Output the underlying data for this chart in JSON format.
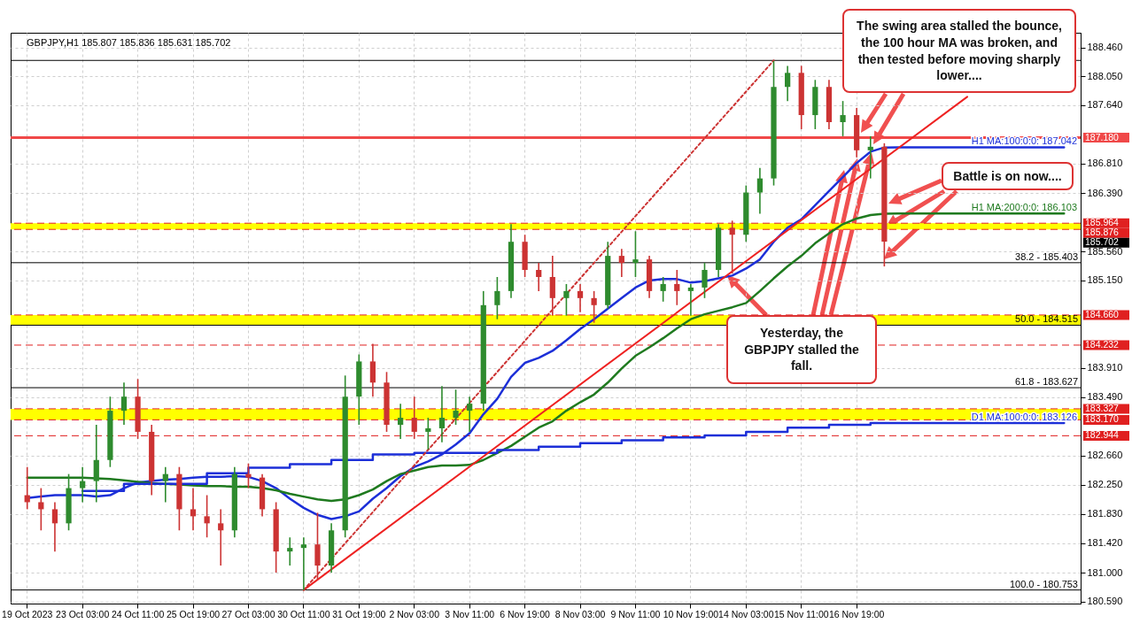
{
  "chart_data": {
    "type": "candlestick",
    "title": "GBPJPY,H1  185.807 185.836 185.631 185.702",
    "categories": [
      "19 Oct 2023",
      null,
      null,
      null,
      "23 Oct 03:00",
      null,
      null,
      null,
      "24 Oct 11:00",
      null,
      null,
      null,
      "25 Oct 19:00",
      null,
      null,
      null,
      "27 Oct 03:00",
      null,
      null,
      null,
      "30 Oct 11:00",
      null,
      null,
      null,
      "31 Oct 19:00",
      null,
      null,
      null,
      "2 Nov 03:00",
      null,
      null,
      null,
      "3 Nov 11:00",
      null,
      null,
      null,
      "6 Nov 19:00",
      null,
      null,
      null,
      "8 Nov 03:00",
      null,
      null,
      null,
      "9 Nov 11:00",
      null,
      null,
      null,
      "10 Nov 19:00",
      null,
      null,
      null,
      "14 Nov 03:00",
      null,
      null,
      null,
      "15 Nov 11:00",
      null,
      null,
      null,
      "16 Nov 19:00",
      null,
      null,
      null,
      null,
      null,
      null,
      null,
      null,
      null,
      null,
      null,
      null,
      null,
      null,
      null
    ],
    "ohlc": [
      [
        182.1,
        182.5,
        181.9,
        182.0
      ],
      [
        182.0,
        182.2,
        181.6,
        181.9
      ],
      [
        181.9,
        182.0,
        181.3,
        181.7
      ],
      [
        181.7,
        182.4,
        181.6,
        182.2
      ],
      [
        182.2,
        182.5,
        182.0,
        182.3
      ],
      [
        182.3,
        183.1,
        182.0,
        182.6
      ],
      [
        182.6,
        183.5,
        182.5,
        183.3
      ],
      [
        183.3,
        183.7,
        183.1,
        183.5
      ],
      [
        183.5,
        183.75,
        182.9,
        183.0
      ],
      [
        183.0,
        183.1,
        182.1,
        182.3
      ],
      [
        182.3,
        182.5,
        182.0,
        182.4
      ],
      [
        182.4,
        182.5,
        181.6,
        181.9
      ],
      [
        181.9,
        182.2,
        181.6,
        181.8
      ],
      [
        181.8,
        182.1,
        181.5,
        181.7
      ],
      [
        181.7,
        181.9,
        181.1,
        181.6
      ],
      [
        181.6,
        182.5,
        181.5,
        182.4
      ],
      [
        182.4,
        182.55,
        182.2,
        182.35
      ],
      [
        182.35,
        182.4,
        181.8,
        181.9
      ],
      [
        181.9,
        182.0,
        181.0,
        181.3
      ],
      [
        181.3,
        181.5,
        181.1,
        181.35
      ],
      [
        181.35,
        181.5,
        180.753,
        181.4
      ],
      [
        181.4,
        181.85,
        180.9,
        181.1
      ],
      [
        181.1,
        181.7,
        181.0,
        181.6
      ],
      [
        181.6,
        183.8,
        181.5,
        183.5
      ],
      [
        183.5,
        184.1,
        183.1,
        184.0
      ],
      [
        184.0,
        184.25,
        183.5,
        183.7
      ],
      [
        183.7,
        183.85,
        183.0,
        183.1
      ],
      [
        183.1,
        183.4,
        182.9,
        183.2
      ],
      [
        183.2,
        183.5,
        182.9,
        183.0
      ],
      [
        183.0,
        183.2,
        182.75,
        183.05
      ],
      [
        183.05,
        183.65,
        182.85,
        183.2
      ],
      [
        183.2,
        183.6,
        183.1,
        183.3
      ],
      [
        183.3,
        183.5,
        183.0,
        183.4
      ],
      [
        183.4,
        185.0,
        183.3,
        184.8
      ],
      [
        184.8,
        185.2,
        184.6,
        185.0
      ],
      [
        185.0,
        185.95,
        184.9,
        185.7
      ],
      [
        185.7,
        185.8,
        185.2,
        185.3
      ],
      [
        185.3,
        185.4,
        185.0,
        185.2
      ],
      [
        185.2,
        185.5,
        184.65,
        184.9
      ],
      [
        184.9,
        185.1,
        184.65,
        185.0
      ],
      [
        185.0,
        185.1,
        184.7,
        184.9
      ],
      [
        184.9,
        185.0,
        184.55,
        184.8
      ],
      [
        184.8,
        185.7,
        184.75,
        185.5
      ],
      [
        185.5,
        185.6,
        185.2,
        185.4
      ],
      [
        185.4,
        185.85,
        185.2,
        185.45
      ],
      [
        185.45,
        185.5,
        184.9,
        185.0
      ],
      [
        185.0,
        185.2,
        184.85,
        185.1
      ],
      [
        185.1,
        185.3,
        184.8,
        185.0
      ],
      [
        185.0,
        185.1,
        184.65,
        185.05
      ],
      [
        185.05,
        185.4,
        184.9,
        185.3
      ],
      [
        185.3,
        185.95,
        185.2,
        185.9
      ],
      [
        185.9,
        186.0,
        185.25,
        185.8
      ],
      [
        185.8,
        186.5,
        185.7,
        186.4
      ],
      [
        186.4,
        186.75,
        186.1,
        186.6
      ],
      [
        186.6,
        188.27,
        186.5,
        187.9
      ],
      [
        187.9,
        188.2,
        187.7,
        188.1
      ],
      [
        188.1,
        188.2,
        187.3,
        187.5
      ],
      [
        187.5,
        188.0,
        187.3,
        187.9
      ],
      [
        187.9,
        188.0,
        187.3,
        187.4
      ],
      [
        187.4,
        187.7,
        187.2,
        187.5
      ],
      [
        187.5,
        187.6,
        186.9,
        187.0
      ],
      [
        187.0,
        187.2,
        186.6,
        187.05
      ],
      [
        187.05,
        187.1,
        185.35,
        185.702
      ],
      null,
      null,
      null,
      null,
      null,
      null,
      null,
      null,
      null,
      null,
      null,
      null,
      null
    ],
    "colors": [
      "#cc3333",
      "#cc3333",
      "#cc3333",
      "#2e8b2e",
      "#2e8b2e",
      "#2e8b2e",
      "#2e8b2e",
      "#2e8b2e",
      "#cc3333",
      "#cc3333",
      "#2e8b2e",
      "#cc3333",
      "#cc3333",
      "#cc3333",
      "#cc3333",
      "#2e8b2e",
      "#cc3333",
      "#cc3333",
      "#cc3333",
      "#2e8b2e",
      "#2e8b2e",
      "#cc3333",
      "#2e8b2e",
      "#2e8b2e",
      "#2e8b2e",
      "#cc3333",
      "#cc3333",
      "#2e8b2e",
      "#cc3333",
      "#2e8b2e",
      "#2e8b2e",
      "#2e8b2e",
      "#2e8b2e",
      "#2e8b2e",
      "#2e8b2e",
      "#2e8b2e",
      "#cc3333",
      "#cc3333",
      "#cc3333",
      "#2e8b2e",
      "#cc3333",
      "#cc3333",
      "#2e8b2e",
      "#cc3333",
      "#2e8b2e",
      "#cc3333",
      "#2e8b2e",
      "#cc3333",
      "#2e8b2e",
      "#2e8b2e",
      "#2e8b2e",
      "#cc3333",
      "#2e8b2e",
      "#2e8b2e",
      "#2e8b2e",
      "#2e8b2e",
      "#cc3333",
      "#2e8b2e",
      "#cc3333",
      "#2e8b2e",
      "#cc3333",
      "#2e8b2e",
      "#cc3333",
      null,
      null,
      null,
      null,
      null,
      null,
      null,
      null,
      null,
      null,
      null,
      null,
      null
    ],
    "series": [
      {
        "type": "line",
        "name": "H1 MA:100:0:0: 187.042",
        "color": "#1c2fd8",
        "values": [
          182.06,
          182.08,
          182.1,
          182.1,
          182.1,
          182.08,
          182.1,
          182.2,
          182.28,
          182.3,
          182.32,
          182.33,
          182.35,
          182.36,
          182.36,
          182.37,
          182.36,
          182.3,
          182.2,
          182.05,
          181.92,
          181.82,
          181.76,
          181.8,
          181.87,
          182.05,
          182.2,
          182.37,
          182.5,
          182.58,
          182.68,
          182.82,
          182.98,
          183.25,
          183.47,
          183.78,
          183.98,
          184.05,
          184.15,
          184.3,
          184.46,
          184.6,
          184.75,
          184.9,
          185.05,
          185.15,
          185.17,
          185.17,
          185.12,
          185.14,
          185.18,
          185.22,
          185.32,
          185.45,
          185.7,
          185.9,
          186.02,
          186.22,
          186.42,
          186.62,
          186.82,
          186.98,
          187.04,
          187.042,
          187.042,
          187.042,
          187.042,
          187.042,
          187.042,
          187.042,
          187.042,
          187.042,
          187.042,
          187.042,
          187.042,
          187.042
        ]
      },
      {
        "type": "line",
        "name": "H1 MA:200:0:0: 186.103",
        "color": "#1f7a1f",
        "values": [
          182.35,
          182.35,
          182.35,
          182.35,
          182.35,
          182.34,
          182.33,
          182.31,
          182.29,
          182.27,
          182.26,
          182.25,
          182.24,
          182.23,
          182.23,
          182.22,
          182.22,
          182.2,
          182.17,
          182.12,
          182.08,
          182.04,
          182.02,
          182.04,
          182.1,
          182.18,
          182.3,
          182.4,
          182.45,
          182.5,
          182.52,
          182.52,
          182.53,
          182.6,
          182.7,
          182.8,
          182.93,
          183.06,
          183.15,
          183.3,
          183.42,
          183.53,
          183.7,
          183.9,
          184.08,
          184.2,
          184.33,
          184.47,
          184.6,
          184.67,
          184.72,
          184.77,
          184.83,
          185.0,
          185.18,
          185.35,
          185.5,
          185.68,
          185.82,
          185.95,
          186.03,
          186.08,
          186.1,
          186.103,
          186.103,
          186.103,
          186.103,
          186.103,
          186.103,
          186.103,
          186.103,
          186.103,
          186.103,
          186.103,
          186.103,
          186.103
        ]
      },
      {
        "type": "step",
        "name": "D1 MA:100:0:0: 183.126",
        "color": "#1c2fd8",
        "values": [
          null,
          null,
          null,
          null,
          182.16,
          182.16,
          182.16,
          182.26,
          182.26,
          182.26,
          182.26,
          182.26,
          182.26,
          182.41,
          182.41,
          182.41,
          182.49,
          182.49,
          182.49,
          182.54,
          182.54,
          182.54,
          182.6,
          182.6,
          182.6,
          182.68,
          182.68,
          182.68,
          182.7,
          182.7,
          182.7,
          182.7,
          182.7,
          182.7,
          182.74,
          182.74,
          182.74,
          182.79,
          182.79,
          182.79,
          182.84,
          182.84,
          182.84,
          182.88,
          182.88,
          182.88,
          182.92,
          182.92,
          182.92,
          182.95,
          182.95,
          182.95,
          183.0,
          183.0,
          183.0,
          183.06,
          183.06,
          183.06,
          183.1,
          183.1,
          183.1,
          183.126,
          183.126,
          183.126,
          183.126,
          183.126,
          183.126,
          183.126,
          183.126,
          183.126,
          183.126,
          183.126,
          183.126,
          183.126,
          183.126,
          183.126
        ]
      },
      {
        "type": "line",
        "color": "#ee2222",
        "values": [
          null,
          null,
          null,
          null,
          null,
          null,
          null,
          null,
          null,
          null,
          null,
          null,
          null,
          null,
          null,
          null,
          null,
          null,
          null,
          null,
          180.753,
          null,
          null,
          null,
          null,
          null,
          null,
          null,
          null,
          null,
          null,
          null,
          null,
          null,
          null,
          null,
          null,
          null,
          null,
          null,
          null,
          null,
          null,
          null,
          null,
          null,
          null,
          null,
          null,
          null,
          null,
          null,
          null,
          null,
          null,
          null,
          null,
          null,
          null,
          null,
          null,
          null,
          null,
          null,
          null,
          null,
          null,
          null,
          187.76,
          null,
          null,
          null,
          null,
          null,
          null,
          null
        ]
      },
      {
        "type": "line",
        "color": "#cc3333",
        "line_style": "dotted",
        "values": [
          null,
          null,
          null,
          null,
          null,
          null,
          null,
          null,
          null,
          null,
          null,
          null,
          null,
          null,
          null,
          null,
          null,
          null,
          null,
          null,
          180.753,
          null,
          null,
          null,
          null,
          null,
          null,
          null,
          null,
          null,
          null,
          null,
          null,
          null,
          null,
          null,
          null,
          null,
          null,
          null,
          null,
          null,
          null,
          null,
          null,
          null,
          null,
          null,
          null,
          null,
          null,
          null,
          null,
          null,
          188.277,
          null,
          null,
          null,
          null,
          null,
          null,
          null,
          null,
          null,
          null,
          null,
          null,
          null,
          null,
          null,
          null,
          null,
          null,
          null,
          null,
          null
        ]
      }
    ],
    "ylim": [
      180.56,
      188.67
    ],
    "yticks": [
      {
        "value": 180.59,
        "label": "180.590"
      },
      {
        "value": 181.0,
        "label": "181.000"
      },
      {
        "value": 181.42,
        "label": "181.420"
      },
      {
        "value": 181.83,
        "label": "181.830"
      },
      {
        "value": 182.25,
        "label": "182.250"
      },
      {
        "value": 182.66,
        "label": "182.660"
      },
      {
        "value": 183.49,
        "label": "183.490"
      },
      {
        "value": 183.91,
        "label": "183.910"
      },
      {
        "value": 185.15,
        "label": "185.150"
      },
      {
        "value": 185.56,
        "label": "185.560"
      },
      {
        "value": 186.39,
        "label": "186.390"
      },
      {
        "value": 186.81,
        "label": "186.810"
      },
      {
        "value": 187.64,
        "label": "187.640"
      },
      {
        "value": 188.05,
        "label": "188.050"
      },
      {
        "value": 188.46,
        "label": "188.460"
      }
    ],
    "grid": true,
    "bands": [
      {
        "axis": "y",
        "from": 185.876,
        "to": 185.964,
        "color": "#ffff00"
      },
      {
        "axis": "y",
        "from": 184.515,
        "to": 184.66,
        "color": "#ffff00"
      },
      {
        "axis": "y",
        "from": 183.17,
        "to": 183.327,
        "color": "#ffff00"
      }
    ],
    "ref_lines": [
      {
        "axis": "y",
        "value": 187.18,
        "label": "187.180",
        "color": "#f04848",
        "line_style": "solid"
      },
      {
        "axis": "y",
        "value": 185.964,
        "label": "185.964",
        "color": "#e02020",
        "line_style": "dashed"
      },
      {
        "axis": "y",
        "value": 185.876,
        "label": "185.876",
        "color": "#e02020",
        "line_style": "dashed"
      },
      {
        "axis": "y",
        "value": 184.66,
        "label": "184.660",
        "color": "#e02020",
        "line_style": "dashed"
      },
      {
        "axis": "y",
        "value": 184.232,
        "label": "184.232",
        "color": "#e02020",
        "line_style": "dashed"
      },
      {
        "axis": "y",
        "value": 183.327,
        "label": "183.327",
        "color": "#e02020",
        "line_style": "dashed"
      },
      {
        "axis": "y",
        "value": 183.17,
        "label": "183.170",
        "color": "#e02020",
        "line_style": "dashed"
      },
      {
        "axis": "y",
        "value": 182.944,
        "label": "182.944",
        "color": "#e02020",
        "line_style": "dashed"
      },
      {
        "axis": "y",
        "value": 188.277,
        "color": "#000000",
        "line_style": "solid"
      },
      {
        "axis": "y",
        "value": 185.403,
        "color": "#000000",
        "line_style": "solid"
      },
      {
        "axis": "y",
        "value": 184.515,
        "color": "#000000",
        "line_style": "solid"
      },
      {
        "axis": "y",
        "value": 183.627,
        "color": "#000000",
        "line_style": "solid"
      },
      {
        "axis": "y",
        "value": 180.753,
        "color": "#000000",
        "line_style": "solid"
      }
    ],
    "annotations": [
      "The swing area stalled the bounce, the 100 hour MA was broken, and then tested before moving sharply lower....",
      "Battle is on now....",
      "Yesterday, the GBPJPY stalled the fall.",
      {
        "text": "38.2 - 185.403",
        "y": 185.403
      },
      {
        "text": "50.0 - 184.515",
        "y": 184.515
      },
      {
        "text": "61.8 - 183.627",
        "y": 183.627
      },
      {
        "text": "100.0 - 180.753",
        "y": 180.753
      },
      "185.702"
    ]
  }
}
